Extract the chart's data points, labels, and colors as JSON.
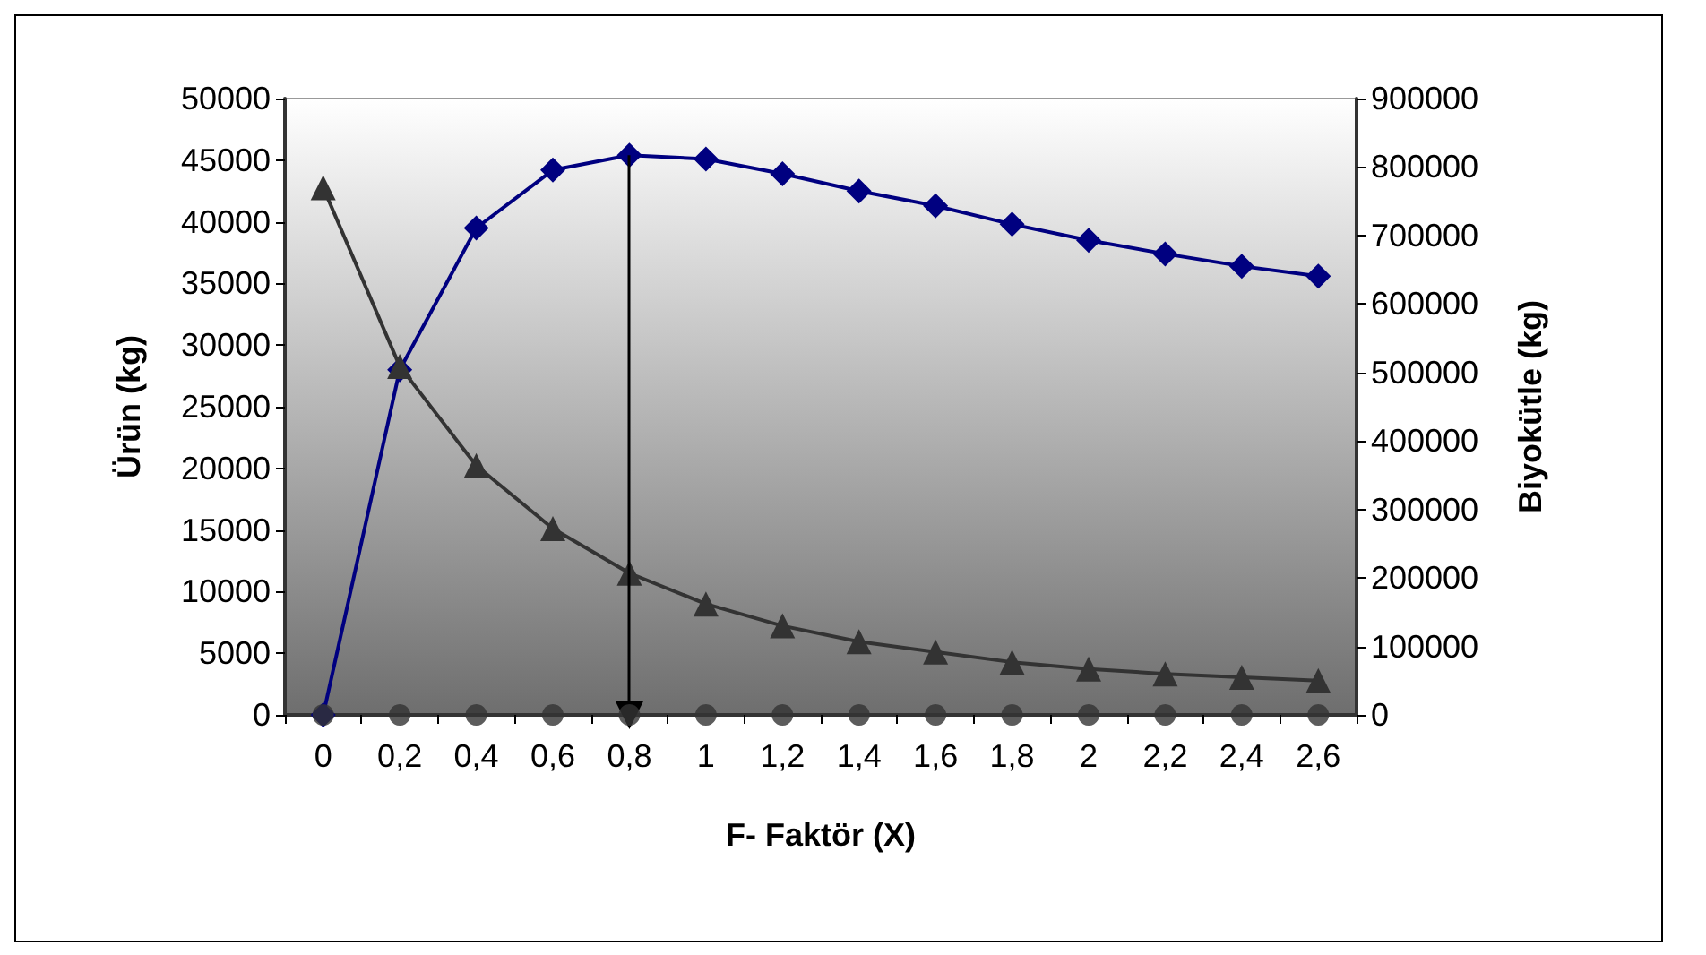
{
  "chart_data": {
    "type": "line",
    "xlabel": "F- Faktör (X)",
    "ylabel": "Ürün (kg)",
    "y2label": "Biyokütle (kg)",
    "categories": [
      "0",
      "0,2",
      "0,4",
      "0,6",
      "0,8",
      "1",
      "1,2",
      "1,4",
      "1,6",
      "1,8",
      "2",
      "2,2",
      "2,4",
      "2,6"
    ],
    "series": [
      {
        "color": "#000080",
        "marker": "diamond",
        "values": [
          0,
          28000,
          39500,
          44200,
          45400,
          45100,
          43900,
          42500,
          41300,
          39800,
          38500,
          37400,
          36400,
          35600
        ]
      },
      {
        "color": "#333333",
        "marker": "triangle",
        "axis": "y2",
        "values": [
          770000,
          509000,
          364000,
          272000,
          207000,
          162000,
          130000,
          107000,
          92000,
          77000,
          67000,
          60000,
          55000,
          50000
        ]
      },
      {
        "type": "scatter",
        "color": "#333333",
        "marker": "circle",
        "values": [
          0,
          0,
          0,
          0,
          0,
          0,
          0,
          0,
          0,
          0,
          0,
          0,
          0,
          0
        ]
      }
    ],
    "ylim": [
      0,
      50000
    ],
    "yticks": [
      0,
      5000,
      10000,
      15000,
      20000,
      25000,
      30000,
      35000,
      40000,
      45000,
      50000
    ],
    "y2lim": [
      0,
      900000
    ],
    "y2ticks": [
      0,
      100000,
      200000,
      300000,
      400000,
      500000,
      600000,
      700000,
      800000,
      900000
    ],
    "ref_lines": [
      {
        "axis": "x",
        "value": "0,8",
        "color": "#000000",
        "line_style": "solid"
      }
    ],
    "grid": false,
    "line_style": "solid"
  }
}
